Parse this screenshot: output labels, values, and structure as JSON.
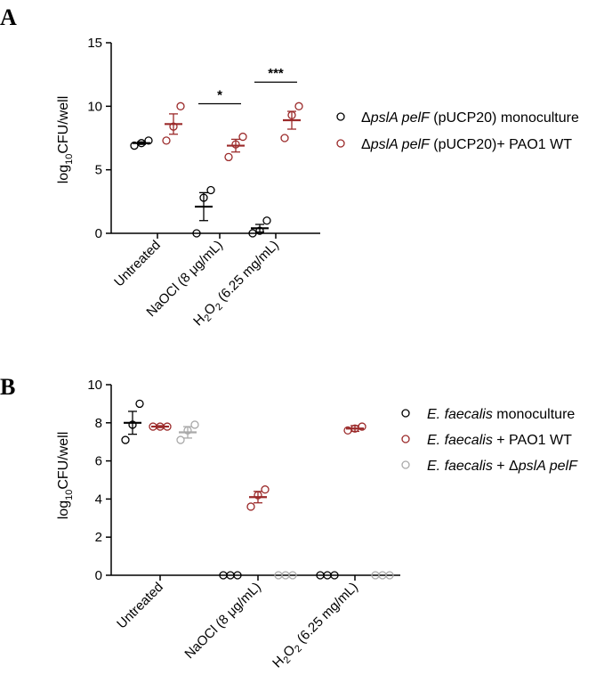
{
  "colors": {
    "black": "#000000",
    "red": "#9b2a2a",
    "gray": "#aaaaaa"
  },
  "chart_data": [
    {
      "panel": "A",
      "type": "scatter",
      "ylabel_main": "log",
      "ylabel_sub": "10",
      "ylabel_rest": "CFU/well",
      "ylim": [
        0,
        15
      ],
      "yticks": [
        "0",
        "5",
        "10",
        "15"
      ],
      "categories": [
        {
          "main": "Untreated"
        },
        {
          "main": "NaOCl (8 μg/mL)"
        },
        {
          "pre": "H",
          "sub": "2",
          "mid": "O",
          "sub2": "2",
          "post": " (6.25 mg/mL)"
        }
      ],
      "series": [
        {
          "legend_pre": "Δ",
          "legend_it": "pslA pelF",
          "legend_post": " (pUCP20) monoculture",
          "color": "black",
          "points": [
            [
              6.9,
              7.1,
              7.3
            ],
            [
              0.0,
              2.8,
              3.4
            ],
            [
              0.0,
              0.2,
              1.0
            ]
          ],
          "mean": [
            7.1,
            2.1,
            0.4
          ],
          "sem": [
            0.1,
            1.1,
            0.3
          ]
        },
        {
          "legend_pre": "Δ",
          "legend_it": "pslA pelF",
          "legend_post": " (pUCP20)+ PAO1 WT",
          "color": "red",
          "points": [
            [
              7.3,
              8.4,
              10.0
            ],
            [
              6.0,
              7.0,
              7.6
            ],
            [
              7.5,
              9.3,
              10.0
            ]
          ],
          "mean": [
            8.6,
            6.9,
            8.9
          ],
          "sem": [
            0.8,
            0.5,
            0.7
          ]
        }
      ],
      "significance": [
        {
          "category": 1,
          "label": "*",
          "y": 10.2
        },
        {
          "category": 2,
          "label": "***",
          "y": 11.9
        }
      ]
    },
    {
      "panel": "B",
      "type": "scatter",
      "ylabel_main": "log",
      "ylabel_sub": "10",
      "ylabel_rest": "CFU/well",
      "ylim": [
        0,
        10
      ],
      "yticks": [
        "0",
        "2",
        "4",
        "6",
        "8",
        "10"
      ],
      "categories": [
        {
          "main": "Untreated"
        },
        {
          "main": "NaOCl (8 μg/mL)"
        },
        {
          "pre": "H",
          "sub": "2",
          "mid": "O",
          "sub2": "2",
          "post": " (6.25 mg/mL)"
        }
      ],
      "series": [
        {
          "legend_it": "E. faecalis",
          "legend_post": " monoculture",
          "color": "black",
          "points": [
            [
              7.1,
              7.9,
              9.0
            ],
            [
              0,
              0,
              0
            ],
            [
              0,
              0,
              0
            ]
          ],
          "mean": [
            8.0,
            0,
            0
          ],
          "sem": [
            0.6,
            0,
            0
          ]
        },
        {
          "legend_it": "E. faecalis",
          "legend_post": " + PAO1 WT",
          "color": "red",
          "points": [
            [
              7.8,
              7.8,
              7.8
            ],
            [
              3.6,
              4.2,
              4.5
            ],
            [
              7.6,
              7.7,
              7.8
            ]
          ],
          "mean": [
            7.8,
            4.1,
            7.7
          ],
          "sem": [
            0.05,
            0.3,
            0.15
          ]
        },
        {
          "legend_it": "E. faecalis",
          "legend_post": " + Δ",
          "legend_it2": "pslA pelF",
          "color": "gray",
          "points": [
            [
              7.1,
              7.6,
              7.9
            ],
            [
              0,
              0,
              0
            ],
            [
              0,
              0,
              0
            ]
          ],
          "mean": [
            7.5,
            0,
            0
          ],
          "sem": [
            0.3,
            0,
            0
          ]
        }
      ]
    }
  ]
}
